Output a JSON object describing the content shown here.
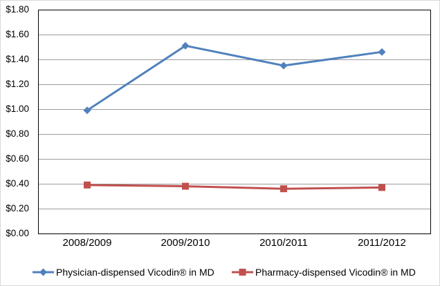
{
  "chart_data": {
    "type": "line",
    "title": "",
    "xlabel": "",
    "ylabel": "",
    "categories": [
      "2008/2009",
      "2009/2010",
      "2010/2011",
      "2011/2012"
    ],
    "series": [
      {
        "name": "Physician-dispensed Vicodin® in MD",
        "values": [
          0.99,
          1.51,
          1.35,
          1.46
        ],
        "color": "#4F81BD",
        "marker": "diamond"
      },
      {
        "name": "Pharmacy-dispensed Vicodin® in MD",
        "values": [
          0.39,
          0.38,
          0.36,
          0.37
        ],
        "color": "#C0504D",
        "marker": "square"
      }
    ],
    "ylim": [
      0,
      1.8
    ],
    "ytick_step": 0.2,
    "ytick_labels": [
      "$0.00",
      "$0.20",
      "$0.40",
      "$0.60",
      "$0.80",
      "$1.00",
      "$1.20",
      "$1.40",
      "$1.60",
      "$1.80"
    ],
    "grid": true,
    "legend_position": "bottom",
    "gridline_color": "#9B9B9B",
    "axis_color": "#000000",
    "background_color": "#FFFFFF"
  }
}
